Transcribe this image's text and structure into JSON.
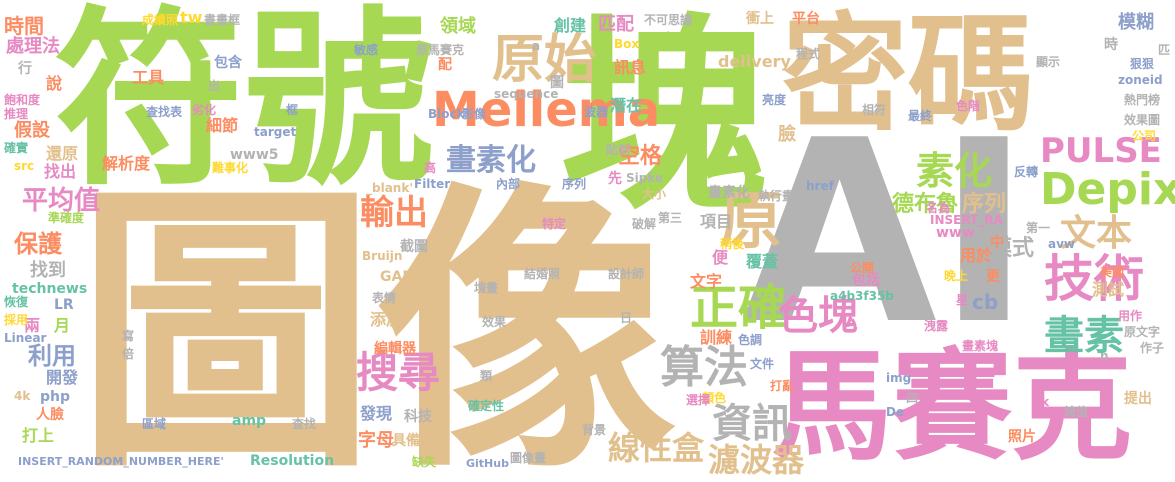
{
  "palette": {
    "tan": "#e2c08d",
    "green": "#a6d854",
    "pink": "#e78ac3",
    "gray": "#b3b3b3",
    "orange": "#fc8d62",
    "teal": "#66c2a5",
    "blue": "#8da0cb",
    "yellow": "#ffd92f"
  },
  "words": [
    {
      "text": "AI",
      "color": "#b3b3b3"
    },
    {
      "text": "圖像",
      "color": "#e2c08d"
    },
    {
      "text": "塊",
      "color": "#a6d854"
    },
    {
      "text": "符號",
      "color": "#a6d854"
    },
    {
      "text": "密碼",
      "color": "#e2c08d"
    },
    {
      "text": "馬賽克",
      "color": "#e78ac3"
    },
    {
      "text": "Mellema",
      "color": "#fc8d62"
    },
    {
      "text": "原始",
      "color": "#e2c08d"
    },
    {
      "text": "Depix",
      "color": "#a6d854"
    },
    {
      "text": "PULSE",
      "color": "#e78ac3"
    },
    {
      "text": "正確",
      "color": "#a6d854"
    },
    {
      "text": "技術",
      "color": "#e78ac3"
    },
    {
      "text": "文本",
      "color": "#e2c08d"
    },
    {
      "text": "算法",
      "color": "#b3b3b3"
    },
    {
      "text": "畫素",
      "color": "#66c2a5"
    },
    {
      "text": "色塊",
      "color": "#e78ac3"
    },
    {
      "text": "畫素化",
      "color": "#8da0cb"
    },
    {
      "text": "搜尋",
      "color": "#e78ac3"
    },
    {
      "text": "原",
      "color": "#e2c08d"
    },
    {
      "text": "素化",
      "color": "#a6d854"
    },
    {
      "text": "資訊",
      "color": "#b3b3b3"
    },
    {
      "text": "輸出",
      "color": "#fc8d62"
    },
    {
      "text": "線性盒",
      "color": "#e2c08d"
    },
    {
      "text": "濾波器",
      "color": "#e2c08d"
    },
    {
      "text": "空格",
      "color": "#fc8d62"
    },
    {
      "text": "德布魯",
      "color": "#a6d854"
    },
    {
      "text": "序列",
      "color": "#e2c08d"
    },
    {
      "text": "模式",
      "color": "#b3b3b3"
    },
    {
      "text": "平均值",
      "color": "#e78ac3"
    },
    {
      "text": "利用",
      "color": "#8da0cb"
    },
    {
      "text": "保護",
      "color": "#fc8d62"
    },
    {
      "text": "時間",
      "color": "#fc8d62"
    },
    {
      "text": "處理法",
      "color": "#e78ac3"
    },
    {
      "text": "成績照",
      "color": "#ffd92f"
    },
    {
      "text": "tw",
      "color": "#ffd92f"
    },
    {
      "text": "書畫框",
      "color": "#b3b3b3"
    },
    {
      "text": "不可思議",
      "color": "#b3b3b3"
    },
    {
      "text": "衝上",
      "color": "#e2c08d"
    },
    {
      "text": "平台",
      "color": "#fc8d62"
    },
    {
      "text": "模糊",
      "color": "#8da0cb"
    },
    {
      "text": "領域",
      "color": "#a6d854"
    },
    {
      "text": "創建",
      "color": "#66c2a5"
    },
    {
      "text": "匹配",
      "color": "#e78ac3"
    },
    {
      "text": "組合",
      "color": "#a6d854"
    },
    {
      "text": "Box",
      "color": "#ffd92f"
    },
    {
      "text": "訊息",
      "color": "#fc8d62"
    },
    {
      "text": "delivery",
      "color": "#e2c08d"
    },
    {
      "text": "敏感",
      "color": "#8da0cb"
    },
    {
      "text": "原馬賽克",
      "color": "#b3b3b3"
    },
    {
      "text": "工具",
      "color": "#fc8d62"
    },
    {
      "text": "包含",
      "color": "#8da0cb"
    },
    {
      "text": "查找表",
      "color": "#8da0cb"
    },
    {
      "text": "細節",
      "color": "#fc8d62"
    },
    {
      "text": "解析度",
      "color": "#fc8d62"
    },
    {
      "text": "還原",
      "color": "#e2c08d"
    },
    {
      "text": "假設",
      "color": "#fc8d62"
    },
    {
      "text": "推理",
      "color": "#e78ac3"
    },
    {
      "text": "飽和度",
      "color": "#e78ac3"
    },
    {
      "text": "確實",
      "color": "#66c2a5"
    },
    {
      "text": "src",
      "color": "#ffd92f"
    },
    {
      "text": "找出",
      "color": "#e78ac3"
    },
    {
      "text": "準確度",
      "color": "#a6d854"
    },
    {
      "text": "找到",
      "color": "#b3b3b3"
    },
    {
      "text": "technews",
      "color": "#66c2a5"
    },
    {
      "text": "LR",
      "color": "#8da0cb"
    },
    {
      "text": "兩",
      "color": "#e78ac3"
    },
    {
      "text": "月",
      "color": "#a6d854"
    },
    {
      "text": "恢復",
      "color": "#66c2a5"
    },
    {
      "text": "採用",
      "color": "#ffd92f"
    },
    {
      "text": "Linear",
      "color": "#8da0cb"
    },
    {
      "text": "開發",
      "color": "#8da0cb"
    },
    {
      "text": "php",
      "color": "#8da0cb"
    },
    {
      "text": "4k",
      "color": "#e2c08d"
    },
    {
      "text": "人臉",
      "color": "#fc8d62"
    },
    {
      "text": "打上",
      "color": "#a6d854"
    },
    {
      "text": "INSERT_RANDOM_NUMBER_HERE'",
      "color": "#8da0cb"
    },
    {
      "text": "Resolution",
      "color": "#66c2a5"
    },
    {
      "text": "amp",
      "color": "#66c2a5"
    },
    {
      "text": "區域",
      "color": "#8da0cb"
    },
    {
      "text": "查找",
      "color": "#b3b3b3"
    },
    {
      "text": "缺失",
      "color": "#a6d854"
    },
    {
      "text": "GitHub",
      "color": "#8da0cb"
    },
    {
      "text": "圖像畫",
      "color": "#b3b3b3"
    },
    {
      "text": "字母",
      "color": "#fc8d62"
    },
    {
      "text": "具備",
      "color": "#e2c08d"
    },
    {
      "text": "發現",
      "color": "#8da0cb"
    },
    {
      "text": "科技",
      "color": "#b3b3b3"
    },
    {
      "text": "編輯器",
      "color": "#fc8d62"
    },
    {
      "text": "添加",
      "color": "#e2c08d"
    },
    {
      "text": "表情",
      "color": "#b3b3b3"
    },
    {
      "text": "效果",
      "color": "#b3b3b3"
    },
    {
      "text": "GAN",
      "color": "#e2c08d"
    },
    {
      "text": "Bruijn",
      "color": "#e2c08d"
    },
    {
      "text": "截圖",
      "color": "#b3b3b3"
    },
    {
      "text": "結婚照",
      "color": "#b3b3b3"
    },
    {
      "text": "設計師",
      "color": "#b3b3b3"
    },
    {
      "text": "塊畫",
      "color": "#b3b3b3"
    },
    {
      "text": "確定性",
      "color": "#66c2a5"
    },
    {
      "text": "背景",
      "color": "#b3b3b3"
    },
    {
      "text": "特定",
      "color": "#e78ac3"
    },
    {
      "text": "破解",
      "color": "#b3b3b3"
    },
    {
      "text": "序列",
      "color": "#8da0cb"
    },
    {
      "text": "內部",
      "color": "#8da0cb"
    },
    {
      "text": "Filter",
      "color": "#8da0cb"
    },
    {
      "text": "_blank'",
      "color": "#e2c08d"
    },
    {
      "text": "www5",
      "color": "#b3b3b3"
    },
    {
      "text": "cb",
      "color": "#8da0cb"
    },
    {
      "text": "項目",
      "color": "#b3b3b3"
    },
    {
      "text": "便",
      "color": "#e78ac3"
    },
    {
      "text": "覆蓋",
      "color": "#66c2a5"
    },
    {
      "text": "文字",
      "color": "#fc8d62"
    },
    {
      "text": "訓練",
      "color": "#fc8d62"
    },
    {
      "text": "用於",
      "color": "#fc8d62"
    },
    {
      "text": "www",
      "color": "#e78ac3"
    },
    {
      "text": "更",
      "color": "#fc8d62"
    },
    {
      "text": "包括",
      "color": "#e78ac3"
    },
    {
      "text": "晚上",
      "color": "#ffd92f"
    },
    {
      "text": "星",
      "color": "#e78ac3"
    },
    {
      "text": "測試",
      "color": "#e2c08d"
    },
    {
      "text": "美國",
      "color": "#fc8d62"
    },
    {
      "text": "a4b3f35b",
      "color": "#66c2a5"
    },
    {
      "text": "洩露",
      "color": "#e78ac3"
    },
    {
      "text": "作子",
      "color": "#b3b3b3"
    },
    {
      "text": "原文字",
      "color": "#b3b3b3"
    },
    {
      "text": "用作",
      "color": "#e78ac3"
    },
    {
      "text": "畫素塊",
      "color": "#e78ac3"
    },
    {
      "text": "文件",
      "color": "#8da0cb"
    },
    {
      "text": "色調",
      "color": "#8da0cb"
    },
    {
      "text": "img",
      "color": "#8da0cb"
    },
    {
      "text": "De",
      "color": "#8da0cb"
    },
    {
      "text": "ck",
      "color": "#e78ac3"
    },
    {
      "text": "塊值",
      "color": "#b3b3b3"
    },
    {
      "text": "提出",
      "color": "#e2c08d"
    },
    {
      "text": "照片",
      "color": "#fc8d62"
    },
    {
      "text": "打亂",
      "color": "#fc8d62"
    },
    {
      "text": "顏色",
      "color": "#ffd92f"
    },
    {
      "text": "選擇",
      "color": "#e78ac3"
    },
    {
      "text": "名為",
      "color": "#e78ac3"
    },
    {
      "text": "公開",
      "color": "#fc8d62"
    },
    {
      "text": "分為",
      "color": "#b3b3b3"
    },
    {
      "text": "INSERT_RA",
      "color": "#e78ac3"
    },
    {
      "text": "href",
      "color": "#8da0cb"
    },
    {
      "text": "嘗試",
      "color": "#b3b3b3"
    },
    {
      "text": "反轉",
      "color": "#8da0cb"
    },
    {
      "text": "第三",
      "color": "#b3b3b3"
    },
    {
      "text": "大小",
      "color": "#e2c08d"
    },
    {
      "text": "Sipke",
      "color": "#b3b3b3"
    },
    {
      "text": "先",
      "color": "#e78ac3"
    },
    {
      "text": "貼到",
      "color": "#b3b3b3"
    },
    {
      "text": "潛在",
      "color": "#66c2a5"
    },
    {
      "text": "臉",
      "color": "#e2c08d"
    },
    {
      "text": "亮度",
      "color": "#8da0cb"
    },
    {
      "text": "相符",
      "color": "#b3b3b3"
    },
    {
      "text": "最終",
      "color": "#8da0cb"
    },
    {
      "text": "色階",
      "color": "#e78ac3"
    },
    {
      "text": "熱門榜",
      "color": "#b3b3b3"
    },
    {
      "text": "效果圖",
      "color": "#b3b3b3"
    },
    {
      "text": "公司",
      "color": "#ffd92f"
    },
    {
      "text": "zoneid",
      "color": "#8da0cb"
    },
    {
      "text": "狠狠",
      "color": "#8da0cb"
    },
    {
      "text": "顯示",
      "color": "#b3b3b3"
    },
    {
      "text": "程式",
      "color": "#b3b3b3"
    },
    {
      "text": "Block",
      "color": "#8da0cb"
    },
    {
      "text": "sequence",
      "color": "#b3b3b3"
    },
    {
      "text": "影像",
      "color": "#8da0cb"
    },
    {
      "text": "波器",
      "color": "#8da0cb"
    },
    {
      "text": "畫素化",
      "color": "#b3b3b3"
    },
    {
      "text": "執行畫",
      "color": "#b3b3b3"
    },
    {
      "text": "劣化",
      "color": "#e78ac3"
    },
    {
      "text": "框",
      "color": "#8da0cb"
    },
    {
      "text": "target",
      "color": "#8da0cb"
    },
    {
      "text": "難事化",
      "color": "#ffd92f"
    },
    {
      "text": "寫",
      "color": "#b3b3b3"
    },
    {
      "text": "倍",
      "color": "#b3b3b3"
    },
    {
      "text": "高",
      "color": "#e78ac3"
    },
    {
      "text": "說",
      "color": "#fc8d62"
    },
    {
      "text": "行",
      "color": "#b3b3b3"
    },
    {
      "text": "配",
      "color": "#fc8d62"
    },
    {
      "text": "時",
      "color": "#b3b3b3"
    },
    {
      "text": "匹",
      "color": "#b3b3b3"
    },
    {
      "text": "圖",
      "color": "#b3b3b3"
    },
    {
      "text": "a",
      "color": "#b3b3b3"
    },
    {
      "text": "avw",
      "color": "#8da0cb"
    },
    {
      "text": "第一",
      "color": "#b3b3b3"
    },
    {
      "text": "中",
      "color": "#fc8d62"
    },
    {
      "text": "四",
      "color": "#b3b3b3"
    },
    {
      "text": "正",
      "color": "#b3b3b3"
    },
    {
      "text": "日",
      "color": "#b3b3b3"
    },
    {
      "text": "類",
      "color": "#b3b3b3"
    },
    {
      "text": "稍後",
      "color": "#ffd92f"
    },
    {
      "text": "出",
      "color": "#b3b3b3"
    },
    {
      "text": "n",
      "color": "#b3b3b3"
    }
  ]
}
